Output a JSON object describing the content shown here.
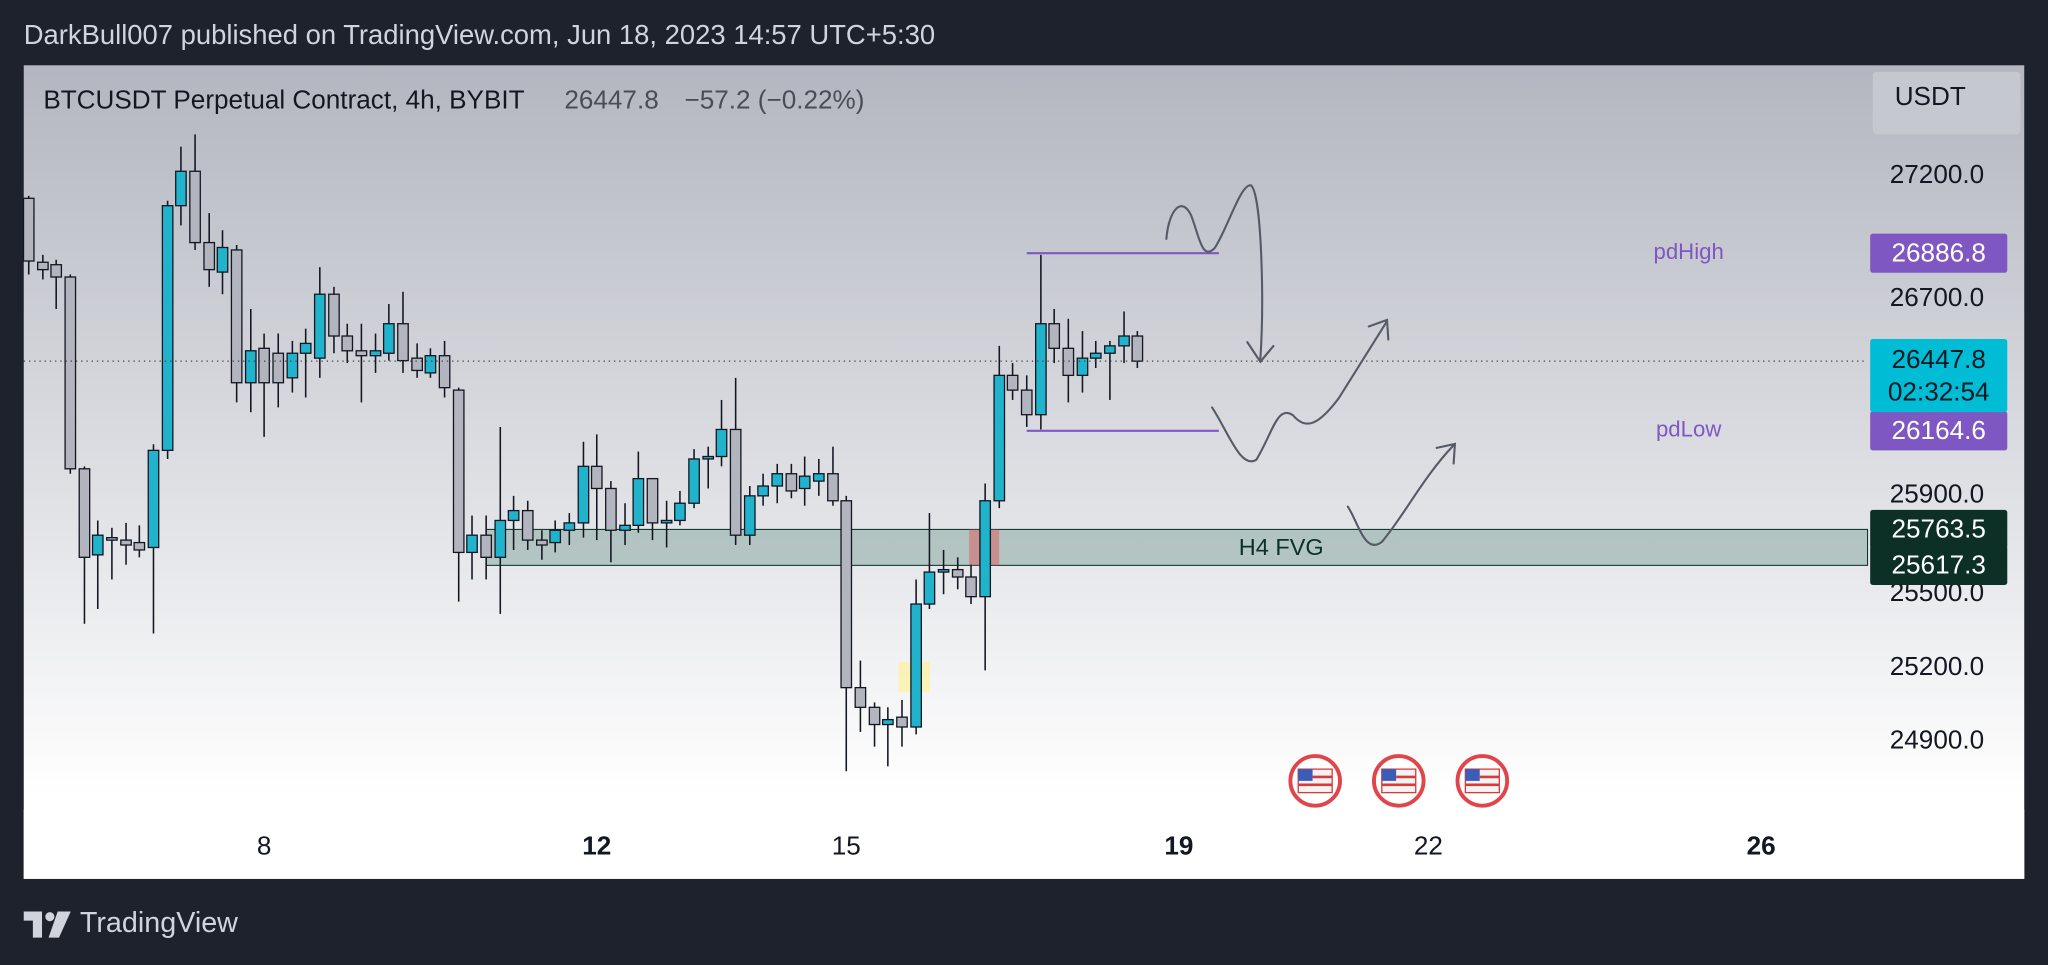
{
  "header": {
    "publisher": "DarkBull007 published on TradingView.com, Jun 18, 2023 14:57 UTC+5:30"
  },
  "footer": {
    "brand": "TradingView"
  },
  "chart_data": {
    "type": "candlestick",
    "title": "BTCUSDT Perpetual Contract, 4h, BYBIT",
    "change": "−57.2 (−0.22%)",
    "currency": "USDT",
    "countdown": "02:32:54",
    "up_color": "#22b3cc",
    "down_color": "#b2b5be",
    "grid": false,
    "x": [
      5.17,
      5.34,
      5.5,
      5.67,
      5.84,
      6.0,
      6.17,
      6.34,
      6.5,
      6.67,
      6.84,
      7.0,
      7.17,
      7.34,
      7.5,
      7.67,
      7.84,
      8.0,
      8.17,
      8.34,
      8.5,
      8.67,
      8.84,
      9.0,
      9.17,
      9.34,
      9.5,
      9.67,
      9.84,
      10.0,
      10.17,
      10.34,
      10.5,
      10.67,
      10.84,
      11.0,
      11.17,
      11.34,
      11.5,
      11.67,
      11.84,
      12.0,
      12.17,
      12.34,
      12.5,
      12.67,
      12.84,
      13.0,
      13.17,
      13.34,
      13.5,
      13.67,
      13.84,
      14.0,
      14.17,
      14.34,
      14.5,
      14.67,
      14.84,
      15.0,
      15.17,
      15.34,
      15.5,
      15.67,
      15.84,
      16.0,
      16.17,
      16.34,
      16.5,
      16.67,
      16.84,
      17.0,
      17.17,
      17.34,
      17.5,
      17.67,
      17.84,
      18.0,
      18.17,
      18.34,
      18.5
    ],
    "open": [
      27110,
      26850,
      26840,
      26790,
      26010,
      25660,
      25730,
      25720,
      25710,
      25690,
      26085,
      27080,
      27220,
      26930,
      26810,
      26900,
      26360,
      26500,
      26480,
      26380,
      26480,
      26460,
      26720,
      26550,
      26490,
      26470,
      26480,
      26600,
      26460,
      26400,
      26470,
      26330,
      25670,
      25740,
      25650,
      25800,
      25840,
      25720,
      25710,
      25760,
      25790,
      26020,
      25930,
      25760,
      25780,
      25970,
      25790,
      25800,
      25870,
      26050,
      26060,
      26170,
      25740,
      25900,
      25940,
      25990,
      25930,
      25960,
      25990,
      25880,
      25120,
      25040,
      24970,
      25000,
      24960,
      25460,
      25590,
      25600,
      25570,
      25490,
      25880,
      26390,
      26330,
      26230,
      26600,
      26500,
      26390,
      26460,
      26480,
      26510,
      26550
    ],
    "high": [
      27120,
      26880,
      26860,
      26800,
      26020,
      25800,
      25770,
      25790,
      25780,
      26110,
      27100,
      27320,
      27370,
      27050,
      26980,
      26920,
      26660,
      26560,
      26560,
      26530,
      26580,
      26830,
      26750,
      26600,
      26600,
      26560,
      26680,
      26730,
      26520,
      26500,
      26530,
      26340,
      25820,
      25820,
      26180,
      25900,
      25880,
      25760,
      25800,
      25830,
      26120,
      26150,
      25960,
      25870,
      26080,
      25970,
      25880,
      25920,
      26090,
      26100,
      26290,
      26380,
      25940,
      25990,
      26030,
      26030,
      26060,
      26050,
      26100,
      25900,
      25230,
      25060,
      25040,
      25070,
      25560,
      25830,
      25680,
      25650,
      25620,
      25950,
      26510,
      26440,
      26390,
      26880,
      26660,
      26620,
      26570,
      26530,
      26530,
      26650,
      26570
    ],
    "low": [
      26800,
      26780,
      26660,
      25990,
      25380,
      25440,
      25560,
      25620,
      25650,
      25340,
      26050,
      27000,
      26900,
      26750,
      26720,
      26280,
      26240,
      26140,
      26260,
      26320,
      26300,
      26380,
      26480,
      26440,
      26280,
      26400,
      26450,
      26400,
      26380,
      26380,
      26300,
      25470,
      25560,
      25560,
      25420,
      25680,
      25680,
      25640,
      25670,
      25700,
      25730,
      25720,
      25630,
      25700,
      25750,
      25720,
      25690,
      25780,
      25850,
      25930,
      26020,
      25700,
      25700,
      25860,
      25870,
      25890,
      25860,
      25900,
      25860,
      24780,
      24940,
      24880,
      24800,
      24880,
      24930,
      25440,
      25500,
      25520,
      25460,
      25190,
      25850,
      26290,
      26180,
      26170,
      26440,
      26280,
      26320,
      26420,
      26290,
      26440,
      26420
    ],
    "close": [
      26855,
      26820,
      26790,
      26010,
      25650,
      25740,
      25720,
      25700,
      25680,
      26085,
      27080,
      27220,
      26930,
      26820,
      26910,
      26360,
      26490,
      26360,
      26360,
      26480,
      26520,
      26720,
      26550,
      26490,
      26470,
      26490,
      26600,
      26450,
      26410,
      26470,
      26340,
      25670,
      25740,
      25650,
      25800,
      25840,
      25720,
      25700,
      25760,
      25790,
      26020,
      25930,
      25760,
      25780,
      25970,
      25790,
      25800,
      25870,
      26050,
      26060,
      26170,
      25740,
      25900,
      25940,
      25990,
      25920,
      25980,
      25990,
      25880,
      25120,
      25040,
      24970,
      24990,
      24960,
      25460,
      25590,
      25600,
      25570,
      25490,
      25880,
      26390,
      26330,
      26230,
      26600,
      26500,
      26390,
      26460,
      26480,
      26510,
      26550,
      26447.8
    ],
    "xlim": [
      5.11,
      27.28
    ],
    "ylim": [
      24624,
      27651
    ],
    "xticks": [
      8,
      12,
      15,
      19,
      22,
      26
    ],
    "xticks_bold": [
      false,
      true,
      false,
      true,
      false,
      true
    ],
    "yticks": [
      {
        "value": 27200,
        "label": "27200.0"
      },
      {
        "value": 26700,
        "label": "26700.0"
      },
      {
        "value": 25900,
        "label": "25900.0"
      },
      {
        "value": 25500,
        "label": "25500.0"
      },
      {
        "value": 25200,
        "label": "25200.0"
      },
      {
        "value": 24900,
        "label": "24900.0"
      }
    ],
    "levels": [
      {
        "name": "pdHigh",
        "value": 26886.8,
        "start": 17.17,
        "end": 19.48,
        "color": "#7e57c2"
      },
      {
        "name": "pdLow",
        "value": 26164.6,
        "start": 17.17,
        "end": 19.48,
        "color": "#7e57c2"
      }
    ],
    "zone": {
      "name": "H4 FVG",
      "high": 25763.5,
      "low": 25617.3,
      "start": 10.67,
      "color": "#0c3026"
    }
  }
}
